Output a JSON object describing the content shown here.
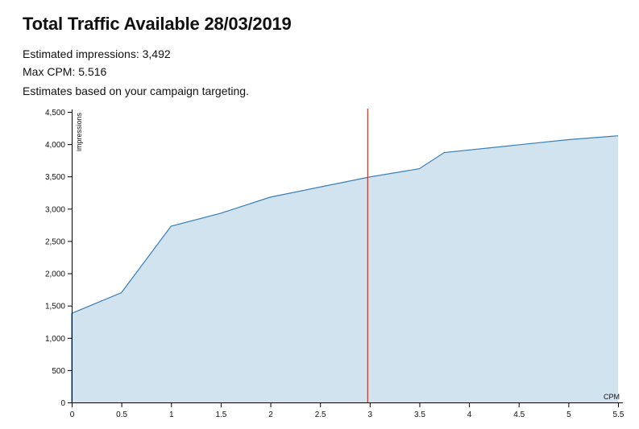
{
  "header": {
    "title": "Total Traffic Available 28/03/2019",
    "impressions_line": "Estimated impressions: 3,492",
    "max_cpm_line": "Max CPM: 5.516",
    "note": "Estimates based on your campaign targeting."
  },
  "colors": {
    "area_fill": "#d2e3f0",
    "line": "#3a7fb5",
    "marker": "#c0392b",
    "axis": "#000000"
  },
  "chart_data": {
    "type": "area",
    "xlabel": "CPM",
    "ylabel": "impressions",
    "xlim": [
      0,
      5.5
    ],
    "ylim": [
      0,
      4500
    ],
    "x_ticks": [
      0,
      0.5,
      1,
      1.5,
      2,
      2.5,
      3,
      3.5,
      4,
      4.5,
      5,
      5.5
    ],
    "x_tick_labels": [
      "0",
      "0.5",
      "1",
      "1.5",
      "2",
      "2.5",
      "3",
      "3.5",
      "4",
      "4.5",
      "5",
      "5.5"
    ],
    "y_ticks": [
      0,
      500,
      1000,
      1500,
      2000,
      2500,
      3000,
      3500,
      4000,
      4500
    ],
    "y_tick_labels": [
      "0",
      "500",
      "1,000",
      "1,500",
      "2,000",
      "2,500",
      "3,000",
      "3,500",
      "4,000",
      "4,500"
    ],
    "series": [
      {
        "x": [
          0,
          0,
          0.5,
          1,
          1.5,
          2,
          3,
          3.5,
          3.75,
          5,
          5.5
        ],
        "values": [
          0,
          1380,
          1700,
          2730,
          2930,
          3180,
          3492,
          3620,
          3870,
          4070,
          4130
        ]
      }
    ],
    "marker_x": 2.98,
    "grid": false
  }
}
